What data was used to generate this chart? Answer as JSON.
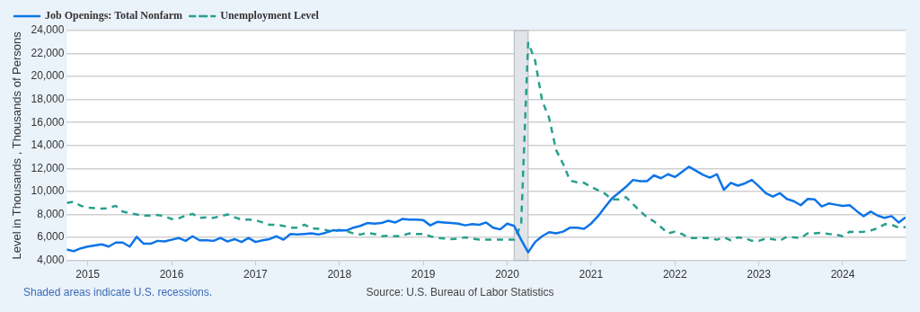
{
  "chart_data": {
    "type": "line",
    "ylabel": "Level in Thousands , Thousands of Persons",
    "x": [
      "2014-10",
      "2014-11",
      "2014-12",
      "2015-01",
      "2015-02",
      "2015-03",
      "2015-04",
      "2015-05",
      "2015-06",
      "2015-07",
      "2015-08",
      "2015-09",
      "2015-10",
      "2015-11",
      "2015-12",
      "2016-01",
      "2016-02",
      "2016-03",
      "2016-04",
      "2016-05",
      "2016-06",
      "2016-07",
      "2016-08",
      "2016-09",
      "2016-10",
      "2016-11",
      "2016-12",
      "2017-01",
      "2017-02",
      "2017-03",
      "2017-04",
      "2017-05",
      "2017-06",
      "2017-07",
      "2017-08",
      "2017-09",
      "2017-10",
      "2017-11",
      "2017-12",
      "2018-01",
      "2018-02",
      "2018-03",
      "2018-04",
      "2018-05",
      "2018-06",
      "2018-07",
      "2018-08",
      "2018-09",
      "2018-10",
      "2018-11",
      "2018-12",
      "2019-01",
      "2019-02",
      "2019-03",
      "2019-04",
      "2019-05",
      "2019-06",
      "2019-07",
      "2019-08",
      "2019-09",
      "2019-10",
      "2019-11",
      "2019-12",
      "2020-01",
      "2020-02",
      "2020-03",
      "2020-04",
      "2020-05",
      "2020-06",
      "2020-07",
      "2020-08",
      "2020-09",
      "2020-10",
      "2020-11",
      "2020-12",
      "2021-01",
      "2021-02",
      "2021-03",
      "2021-04",
      "2021-05",
      "2021-06",
      "2021-07",
      "2021-08",
      "2021-09",
      "2021-10",
      "2021-11",
      "2021-12",
      "2022-01",
      "2022-02",
      "2022-03",
      "2022-04",
      "2022-05",
      "2022-06",
      "2022-07",
      "2022-08",
      "2022-09",
      "2022-10",
      "2022-11",
      "2022-12",
      "2023-01",
      "2023-02",
      "2023-03",
      "2023-04",
      "2023-05",
      "2023-06",
      "2023-07",
      "2023-08",
      "2023-09",
      "2023-10",
      "2023-11",
      "2023-12",
      "2024-01",
      "2024-02",
      "2024-03",
      "2024-04",
      "2024-05",
      "2024-06",
      "2024-07",
      "2024-08",
      "2024-09",
      "2024-10"
    ],
    "series": [
      {
        "name": "Job Openings: Total Nonfarm",
        "color": "#0d74e8",
        "line_style": "solid",
        "values": [
          4950,
          4800,
          5050,
          5200,
          5300,
          5400,
          5200,
          5550,
          5550,
          5200,
          6050,
          5450,
          5450,
          5700,
          5650,
          5800,
          5950,
          5700,
          6100,
          5750,
          5750,
          5700,
          5950,
          5650,
          5850,
          5600,
          5950,
          5600,
          5750,
          5850,
          6100,
          5800,
          6300,
          6250,
          6300,
          6350,
          6250,
          6400,
          6600,
          6600,
          6600,
          6850,
          7000,
          7250,
          7200,
          7250,
          7450,
          7300,
          7600,
          7550,
          7550,
          7500,
          7050,
          7350,
          7300,
          7250,
          7200,
          7050,
          7150,
          7100,
          7300,
          6850,
          6700,
          7200,
          7000,
          5800,
          4700,
          5600,
          6100,
          6450,
          6350,
          6500,
          6850,
          6850,
          6750,
          7200,
          7850,
          8650,
          9400,
          9900,
          10400,
          11000,
          10900,
          10900,
          11400,
          11150,
          11500,
          11250,
          11700,
          12150,
          11800,
          11450,
          11200,
          11500,
          10150,
          10750,
          10500,
          10700,
          11000,
          10450,
          9850,
          9550,
          9850,
          9350,
          9150,
          8800,
          9350,
          9300,
          8700,
          8950,
          8850,
          8750,
          8800,
          8300,
          7850,
          8250,
          7900,
          7700,
          7850,
          7300,
          7750
        ]
      },
      {
        "name": "Unemployment Level",
        "color": "#26a08c",
        "line_style": "dashed",
        "values": [
          9000,
          9100,
          8750,
          8600,
          8550,
          8500,
          8550,
          8750,
          8250,
          8100,
          8000,
          7900,
          7900,
          7950,
          7850,
          7600,
          7650,
          7900,
          8050,
          7700,
          7750,
          7700,
          7850,
          8000,
          7750,
          7550,
          7550,
          7500,
          7300,
          7100,
          7100,
          7000,
          6850,
          6850,
          7100,
          6800,
          6750,
          6650,
          6500,
          6650,
          6550,
          6350,
          6250,
          6400,
          6300,
          6100,
          6150,
          6100,
          6150,
          6350,
          6300,
          6300,
          6100,
          5950,
          5900,
          5850,
          5900,
          6000,
          5900,
          5800,
          5800,
          5800,
          5800,
          5800,
          5800,
          7100,
          22950,
          21400,
          17900,
          16400,
          13600,
          12400,
          10950,
          10800,
          10750,
          10400,
          10100,
          9800,
          9300,
          9300,
          9500,
          8900,
          8300,
          7750,
          7400,
          6900,
          6350,
          6500,
          6300,
          5950,
          5950,
          5950,
          5950,
          5800,
          6000,
          5750,
          6000,
          5950,
          5700,
          5700,
          5900,
          5850,
          5700,
          6050,
          6000,
          5950,
          6350,
          6350,
          6400,
          6300,
          6250,
          6100,
          6500,
          6450,
          6500,
          6600,
          6800,
          7150,
          7100,
          6850,
          6900
        ]
      }
    ],
    "xlim": [
      "2014-10",
      "2024-10"
    ],
    "xticks": [
      "2015",
      "2016",
      "2017",
      "2018",
      "2019",
      "2020",
      "2021",
      "2022",
      "2023",
      "2024"
    ],
    "ylim": [
      4000,
      24000
    ],
    "yticks": [
      {
        "value": 4000,
        "label": "4,000"
      },
      {
        "value": 6000,
        "label": "6,000"
      },
      {
        "value": 8000,
        "label": "8,000"
      },
      {
        "value": 10000,
        "label": "10,000"
      },
      {
        "value": 12000,
        "label": "12,000"
      },
      {
        "value": 14000,
        "label": "14,000"
      },
      {
        "value": 16000,
        "label": "16,000"
      },
      {
        "value": 18000,
        "label": "18,000"
      },
      {
        "value": 20000,
        "label": "20,000"
      },
      {
        "value": 22000,
        "label": "22,000"
      },
      {
        "value": 24000,
        "label": "24,000"
      }
    ],
    "bands": [
      {
        "axis": "x",
        "from": "2020-02",
        "to": "2020-04",
        "color": "#e1e5ea"
      }
    ],
    "grid": "y",
    "legend": "top left",
    "marker": "none",
    "annotations": [
      "Shaded areas indicate U.S. recessions.",
      "Source: U.S. Bureau of Labor Statistics"
    ]
  }
}
